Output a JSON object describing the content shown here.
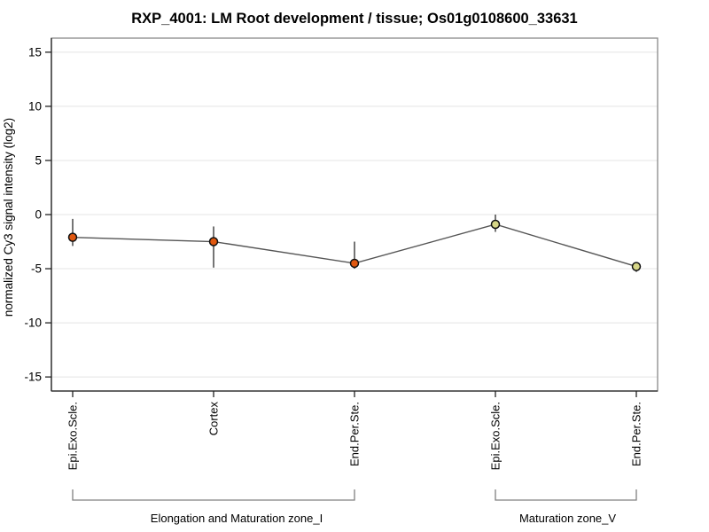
{
  "chart_data": {
    "type": "line",
    "title": "RXP_4001: LM Root development / tissue; Os01g0108600_33631",
    "xlabel": "",
    "ylabel": "normalized Cy3 signal intensity (log2)",
    "ylim": [
      -16.3,
      16.3
    ],
    "yticks": [
      15,
      10,
      5,
      0,
      -5,
      -10,
      -15
    ],
    "grid": true,
    "legend": false,
    "categories": [
      "Epi.Exo.Scle.",
      "Cortex",
      "End.Per.Ste.",
      "Epi.Exo.Scle.",
      "End.Per.Ste."
    ],
    "points": [
      {
        "tissue": "Epi.Exo.Scle.",
        "group": "Elongation and Maturation zone_I",
        "value": -2.1,
        "err_high": -0.4,
        "err_low": -2.9,
        "color": "#e0570f"
      },
      {
        "tissue": "Cortex",
        "group": "Elongation and Maturation zone_I",
        "value": -2.5,
        "err_high": -1.1,
        "err_low": -4.9,
        "color": "#e0570f"
      },
      {
        "tissue": "End.Per.Ste.",
        "group": "Elongation and Maturation zone_I",
        "value": -4.5,
        "err_high": -2.5,
        "err_low": -5.0,
        "color": "#e0570f"
      },
      {
        "tissue": "Epi.Exo.Scle.",
        "group": "Maturation zone_V",
        "value": -0.9,
        "err_high": 0.0,
        "err_low": -1.6,
        "color": "#d6d687"
      },
      {
        "tissue": "End.Per.Ste.",
        "group": "Maturation zone_V",
        "value": -4.8,
        "err_high": -4.4,
        "err_low": -5.3,
        "color": "#d6d687"
      }
    ],
    "groups": [
      {
        "label": "Elongation and Maturation zone_I",
        "from": 0,
        "to": 2
      },
      {
        "label": "Maturation zone_V",
        "from": 3,
        "to": 4
      }
    ],
    "colors": {
      "line": "#555555",
      "error_bar": "#2b2b2b",
      "grid": "#e4e4e4",
      "box": "#888888",
      "axis": "#222222",
      "bracket": "#808080"
    }
  }
}
